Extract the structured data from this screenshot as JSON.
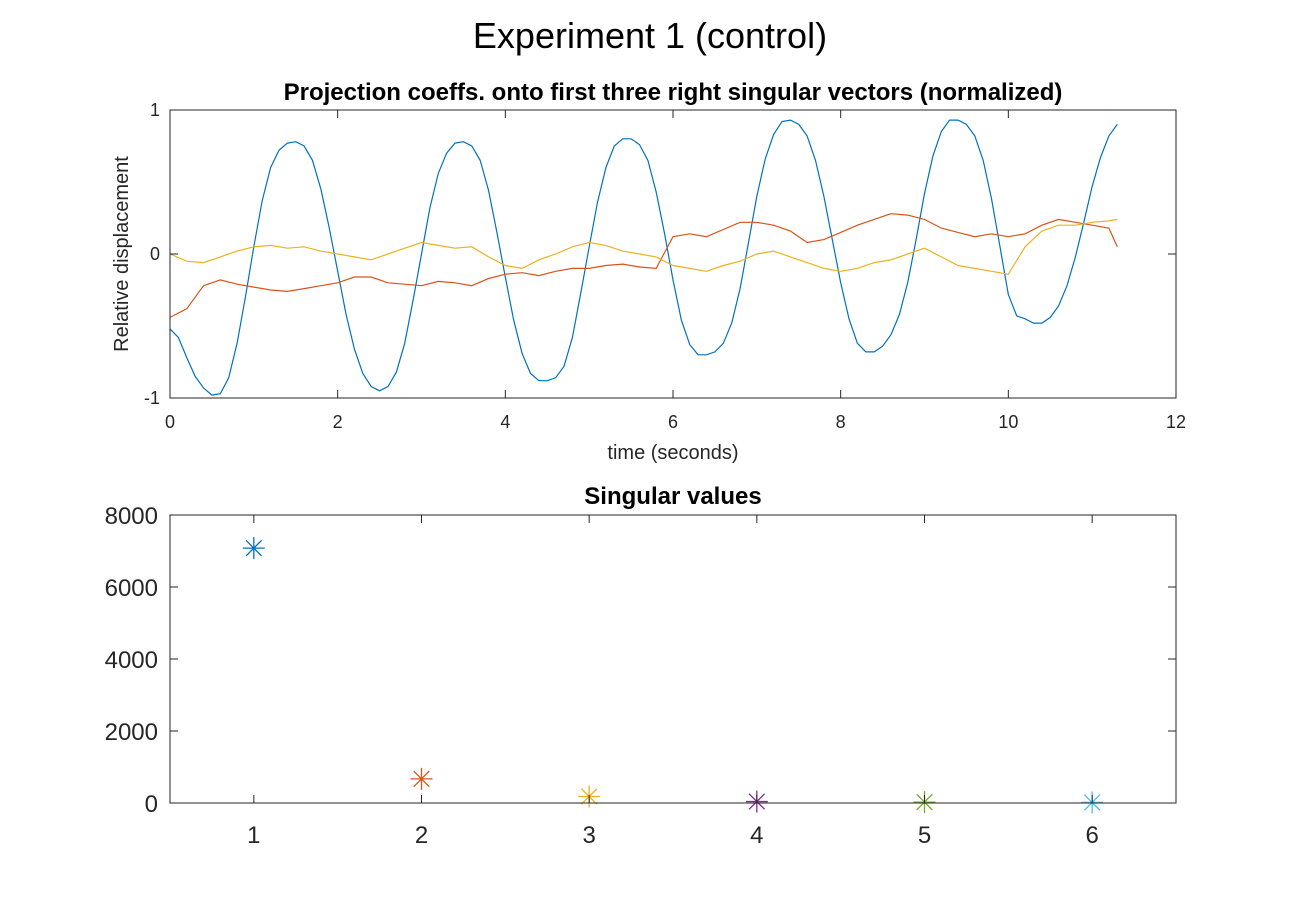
{
  "figure": {
    "title": "Experiment 1 (control)"
  },
  "chart_data": [
    {
      "type": "line",
      "title": "Projection coeffs. onto first three right singular vectors (normalized)",
      "xlabel": "time (seconds)",
      "ylabel": "Relative displacement",
      "xlim": [
        0,
        12
      ],
      "ylim": [
        -1,
        1
      ],
      "xticks": [
        "0",
        "2",
        "4",
        "6",
        "8",
        "10",
        "12"
      ],
      "yticks": [
        "-1",
        "0",
        "1"
      ],
      "grid": false,
      "series": [
        {
          "color": "#0072BD",
          "x": [
            0,
            0.1,
            0.2,
            0.3,
            0.4,
            0.5,
            0.6,
            0.7,
            0.8,
            0.9,
            1.0,
            1.1,
            1.2,
            1.3,
            1.4,
            1.5,
            1.6,
            1.7,
            1.8,
            1.9,
            2.0,
            2.1,
            2.2,
            2.3,
            2.4,
            2.5,
            2.6,
            2.7,
            2.8,
            2.9,
            3.0,
            3.1,
            3.2,
            3.3,
            3.4,
            3.5,
            3.6,
            3.7,
            3.8,
            3.9,
            4.0,
            4.1,
            4.2,
            4.3,
            4.4,
            4.5,
            4.6,
            4.7,
            4.8,
            4.9,
            5.0,
            5.1,
            5.2,
            5.3,
            5.4,
            5.5,
            5.6,
            5.7,
            5.8,
            5.9,
            6.0,
            6.1,
            6.2,
            6.3,
            6.4,
            6.5,
            6.6,
            6.7,
            6.8,
            6.9,
            7.0,
            7.1,
            7.2,
            7.3,
            7.4,
            7.5,
            7.6,
            7.7,
            7.8,
            7.9,
            8.0,
            8.1,
            8.2,
            8.3,
            8.4,
            8.5,
            8.6,
            8.7,
            8.8,
            8.9,
            9.0,
            9.1,
            9.2,
            9.3,
            9.4,
            9.5,
            9.6,
            9.7,
            9.8,
            9.9,
            10.0,
            10.1,
            10.2,
            10.3,
            10.4,
            10.5,
            10.6,
            10.7,
            10.8,
            10.9,
            11.0,
            11.1,
            11.2,
            11.3
          ],
          "y": [
            -0.52,
            -0.58,
            -0.72,
            -0.85,
            -0.93,
            -0.98,
            -0.97,
            -0.86,
            -0.62,
            -0.3,
            0.05,
            0.37,
            0.6,
            0.72,
            0.77,
            0.78,
            0.75,
            0.65,
            0.45,
            0.18,
            -0.12,
            -0.42,
            -0.66,
            -0.83,
            -0.92,
            -0.95,
            -0.92,
            -0.82,
            -0.62,
            -0.32,
            0.0,
            0.32,
            0.56,
            0.7,
            0.77,
            0.78,
            0.75,
            0.65,
            0.44,
            0.15,
            -0.16,
            -0.46,
            -0.69,
            -0.83,
            -0.88,
            -0.88,
            -0.86,
            -0.78,
            -0.58,
            -0.27,
            0.05,
            0.36,
            0.6,
            0.75,
            0.8,
            0.8,
            0.76,
            0.65,
            0.43,
            0.14,
            -0.18,
            -0.46,
            -0.63,
            -0.7,
            -0.7,
            -0.68,
            -0.62,
            -0.48,
            -0.24,
            0.08,
            0.4,
            0.66,
            0.83,
            0.92,
            0.93,
            0.9,
            0.82,
            0.65,
            0.4,
            0.1,
            -0.2,
            -0.45,
            -0.62,
            -0.68,
            -0.68,
            -0.64,
            -0.56,
            -0.42,
            -0.2,
            0.1,
            0.42,
            0.68,
            0.85,
            0.93,
            0.93,
            0.9,
            0.82,
            0.65,
            0.38,
            0.05,
            -0.28,
            -0.43,
            -0.45,
            -0.48,
            -0.48,
            -0.44,
            -0.36,
            -0.22,
            -0.02,
            0.22,
            0.47,
            0.67,
            0.82,
            0.9
          ]
        },
        {
          "color": "#D95319",
          "x": [
            0,
            0.2,
            0.4,
            0.6,
            0.8,
            1.0,
            1.2,
            1.4,
            1.6,
            1.8,
            2.0,
            2.2,
            2.4,
            2.6,
            2.8,
            3.0,
            3.2,
            3.4,
            3.6,
            3.8,
            4.0,
            4.2,
            4.4,
            4.6,
            4.8,
            5.0,
            5.2,
            5.4,
            5.6,
            5.8,
            6.0,
            6.2,
            6.4,
            6.6,
            6.8,
            7.0,
            7.2,
            7.4,
            7.6,
            7.8,
            8.0,
            8.2,
            8.4,
            8.6,
            8.8,
            9.0,
            9.2,
            9.4,
            9.6,
            9.8,
            10.0,
            10.2,
            10.4,
            10.6,
            10.8,
            11.0,
            11.2,
            11.3
          ],
          "y": [
            -0.44,
            -0.38,
            -0.22,
            -0.18,
            -0.21,
            -0.23,
            -0.25,
            -0.26,
            -0.24,
            -0.22,
            -0.2,
            -0.16,
            -0.16,
            -0.2,
            -0.21,
            -0.22,
            -0.19,
            -0.2,
            -0.22,
            -0.17,
            -0.14,
            -0.13,
            -0.15,
            -0.12,
            -0.1,
            -0.1,
            -0.08,
            -0.07,
            -0.09,
            -0.1,
            0.12,
            0.14,
            0.12,
            0.17,
            0.22,
            0.22,
            0.2,
            0.16,
            0.08,
            0.1,
            0.15,
            0.2,
            0.24,
            0.28,
            0.27,
            0.24,
            0.18,
            0.15,
            0.12,
            0.14,
            0.12,
            0.14,
            0.2,
            0.24,
            0.22,
            0.2,
            0.18,
            0.05
          ]
        },
        {
          "color": "#EDB120",
          "x": [
            0,
            0.2,
            0.4,
            0.6,
            0.8,
            1.0,
            1.2,
            1.4,
            1.6,
            1.8,
            2.0,
            2.2,
            2.4,
            2.6,
            2.8,
            3.0,
            3.2,
            3.4,
            3.6,
            3.8,
            4.0,
            4.2,
            4.4,
            4.6,
            4.8,
            5.0,
            5.2,
            5.4,
            5.6,
            5.8,
            6.0,
            6.2,
            6.4,
            6.6,
            6.8,
            7.0,
            7.2,
            7.4,
            7.6,
            7.8,
            8.0,
            8.2,
            8.4,
            8.6,
            8.8,
            9.0,
            9.2,
            9.4,
            9.6,
            9.8,
            10.0,
            10.2,
            10.4,
            10.6,
            10.8,
            11.0,
            11.2,
            11.3
          ],
          "y": [
            0.0,
            -0.05,
            -0.06,
            -0.02,
            0.02,
            0.05,
            0.06,
            0.04,
            0.05,
            0.02,
            0.0,
            -0.02,
            -0.04,
            0.0,
            0.04,
            0.08,
            0.06,
            0.04,
            0.05,
            -0.02,
            -0.08,
            -0.1,
            -0.04,
            0.0,
            0.05,
            0.08,
            0.06,
            0.02,
            0.0,
            -0.02,
            -0.08,
            -0.1,
            -0.12,
            -0.08,
            -0.05,
            0.0,
            0.02,
            -0.02,
            -0.06,
            -0.1,
            -0.12,
            -0.1,
            -0.06,
            -0.04,
            0.0,
            0.04,
            -0.02,
            -0.08,
            -0.1,
            -0.12,
            -0.14,
            0.05,
            0.16,
            0.2,
            0.2,
            0.22,
            0.23,
            0.24
          ]
        }
      ]
    },
    {
      "type": "scatter",
      "title": "Singular values",
      "xlim": [
        0.5,
        6.5
      ],
      "ylim": [
        0,
        8000
      ],
      "xticks": [
        "1",
        "2",
        "3",
        "4",
        "5",
        "6"
      ],
      "yticks": [
        "0",
        "2000",
        "4000",
        "6000",
        "8000"
      ],
      "grid": false,
      "marker": "asterisk",
      "points": [
        {
          "x": 1,
          "y": 7080,
          "color": "#0072BD"
        },
        {
          "x": 2,
          "y": 670,
          "color": "#D95319"
        },
        {
          "x": 3,
          "y": 180,
          "color": "#EDB120"
        },
        {
          "x": 4,
          "y": 40,
          "color": "#7E2F8E"
        },
        {
          "x": 5,
          "y": 25,
          "color": "#77AC30"
        },
        {
          "x": 6,
          "y": 15,
          "color": "#4DBEEE"
        }
      ]
    }
  ]
}
